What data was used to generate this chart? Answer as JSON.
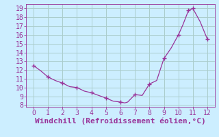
{
  "x": [
    0,
    0.5,
    1,
    1.5,
    2,
    2.5,
    3,
    3.5,
    4,
    4.5,
    5,
    5.5,
    6,
    6.3,
    6.5,
    7,
    7.5,
    8,
    8.5,
    9,
    9.5,
    10,
    10.3,
    10.7,
    11,
    11.5,
    12
  ],
  "y": [
    12.5,
    11.9,
    11.2,
    10.8,
    10.5,
    10.1,
    10.0,
    9.6,
    9.4,
    9.1,
    8.8,
    8.45,
    8.35,
    8.25,
    8.35,
    9.2,
    9.1,
    10.4,
    10.8,
    13.3,
    14.5,
    16.0,
    17.1,
    18.8,
    19.0,
    17.5,
    15.5
  ],
  "marker_x": [
    0,
    1,
    2,
    3,
    4,
    5,
    6,
    7,
    8,
    9,
    10,
    10.7,
    11,
    12
  ],
  "marker_y": [
    12.5,
    11.2,
    10.5,
    10.0,
    9.4,
    8.8,
    8.35,
    9.2,
    10.4,
    13.3,
    16.0,
    18.8,
    19.0,
    15.5
  ],
  "line_color": "#993399",
  "marker_color": "#993399",
  "background_color": "#cceeff",
  "grid_color": "#aacccc",
  "xlabel": "Windchill (Refroidissement éolien,°C)",
  "xlim": [
    -0.5,
    12.5
  ],
  "ylim": [
    7.8,
    19.5
  ],
  "xticks": [
    0,
    1,
    2,
    3,
    4,
    5,
    6,
    7,
    8,
    9,
    10,
    11,
    12
  ],
  "yticks": [
    8,
    9,
    10,
    11,
    12,
    13,
    14,
    15,
    16,
    17,
    18,
    19
  ],
  "tick_color": "#993399",
  "xlabel_fontsize": 8,
  "tick_fontsize": 7
}
